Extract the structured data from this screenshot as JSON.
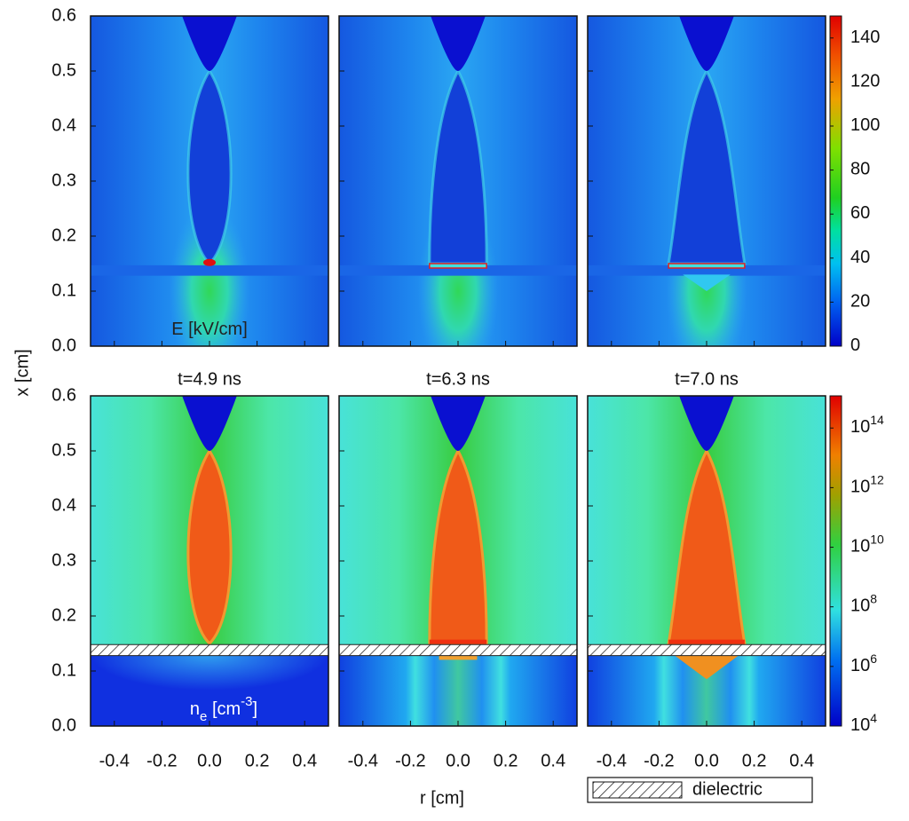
{
  "chart_data": {
    "type": "heatmap-grid",
    "x_label": "r [cm]",
    "y_label": "x [cm]",
    "xlim": [
      -0.5,
      0.5
    ],
    "xticks": [
      -0.4,
      -0.2,
      {
        "value": 0,
        "label": "0.0"
      },
      0.2,
      0.4
    ],
    "ylim": [
      0,
      0.6
    ],
    "yticks": [
      {
        "value": 0,
        "label": "0.0"
      },
      0.1,
      0.2,
      0.3,
      0.4,
      0.5,
      0.6
    ],
    "titles": [
      "t=4.9 ns",
      "t=6.3 ns",
      "t=7.0 ns"
    ],
    "rows": [
      {
        "annotation": [
          {
            "text": "E [kV/cm]"
          }
        ],
        "colorbar": {
          "log": false,
          "clim": [
            0,
            150
          ],
          "ticks": [
            0,
            20,
            40,
            60,
            80,
            100,
            120,
            140
          ]
        }
      },
      {
        "annotation": [
          {
            "text": "n"
          },
          {
            "text": "e",
            "style": "sub"
          },
          {
            "text": " [cm"
          },
          {
            "text": "-3",
            "style": "sup"
          },
          {
            "text": "]"
          }
        ],
        "colorbar": {
          "log": true,
          "clim": [
            10000,
            1200000000000000.0
          ],
          "ticks": [
            {
              "value": 10000,
              "label": "10",
              "exponent": "4"
            },
            {
              "value": 1000000,
              "label": "10",
              "exponent": "6"
            },
            {
              "value": 100000000,
              "label": "10",
              "exponent": "8"
            },
            {
              "value": 10000000000,
              "label": "10",
              "exponent": "10"
            },
            {
              "value": 1000000000000,
              "label": "10",
              "exponent": "12"
            },
            {
              "value": 100000000000000,
              "label": "10",
              "exponent": "14"
            }
          ]
        }
      }
    ],
    "legend": "dielectric"
  }
}
